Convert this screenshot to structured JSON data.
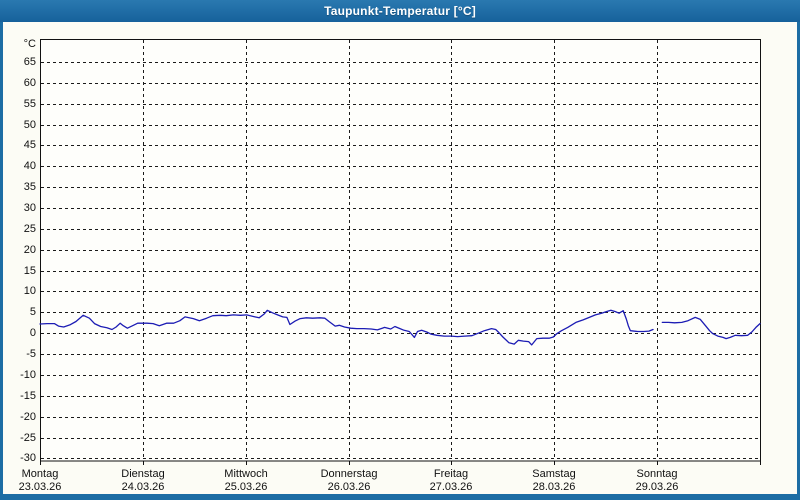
{
  "window": {
    "title": "Taupunkt-Temperatur [°C]"
  },
  "colors": {
    "frame": "#1d6da4",
    "titlebar_top": "#2a79b0",
    "titlebar_bottom": "#16619b",
    "content_bg": "#fcfcf5",
    "plot_bg": "#fefefb",
    "axis": "#111111",
    "grid": "#1a1a1a",
    "series": "#1c1cb4"
  },
  "chart_data": {
    "type": "line",
    "title": "Taupunkt-Temperatur [°C]",
    "ylabel": "",
    "xlabel": "",
    "y_unit_label": "°C",
    "y_ticks": [
      65,
      60,
      55,
      50,
      45,
      40,
      35,
      30,
      25,
      20,
      15,
      10,
      5,
      0,
      -5,
      -10,
      -15,
      -20,
      -25,
      -30
    ],
    "ylim": [
      -30.5,
      70.5
    ],
    "xlim_days": [
      0,
      7
    ],
    "grid": "dashed",
    "legend": "none",
    "days": [
      {
        "name": "Montag",
        "date": "23.03.26"
      },
      {
        "name": "Dienstag",
        "date": "24.03.26"
      },
      {
        "name": "Mittwoch",
        "date": "25.03.26"
      },
      {
        "name": "Donnerstag",
        "date": "26.03.26"
      },
      {
        "name": "Freitag",
        "date": "27.03.26"
      },
      {
        "name": "Samstag",
        "date": "28.03.26"
      },
      {
        "name": "Sonntag",
        "date": "29.03.26"
      }
    ],
    "series": [
      {
        "name": "Taupunkt-Temperatur",
        "color": "#1c1cb4",
        "unit": "°C",
        "segments": [
          [
            [
              0,
              2.2
            ],
            [
              0.07,
              2.3
            ],
            [
              0.14,
              2.3
            ],
            [
              0.18,
              1.7
            ],
            [
              0.23,
              1.5
            ],
            [
              0.29,
              2.0
            ],
            [
              0.35,
              2.8
            ],
            [
              0.42,
              4.3
            ],
            [
              0.48,
              3.6
            ],
            [
              0.53,
              2.3
            ],
            [
              0.59,
              1.6
            ],
            [
              0.65,
              1.3
            ],
            [
              0.7,
              0.9
            ],
            [
              0.74,
              1.5
            ],
            [
              0.78,
              2.4
            ],
            [
              0.81,
              1.8
            ],
            [
              0.85,
              1.2
            ],
            [
              0.9,
              1.8
            ],
            [
              0.95,
              2.4
            ],
            [
              1.04,
              2.4
            ],
            [
              1.1,
              2.3
            ],
            [
              1.16,
              1.8
            ],
            [
              1.23,
              2.4
            ],
            [
              1.3,
              2.4
            ],
            [
              1.36,
              3.0
            ],
            [
              1.41,
              3.9
            ],
            [
              1.49,
              3.5
            ],
            [
              1.55,
              3.0
            ],
            [
              1.62,
              3.6
            ],
            [
              1.68,
              4.2
            ],
            [
              1.75,
              4.3
            ],
            [
              1.81,
              4.2
            ],
            [
              1.88,
              4.4
            ],
            [
              1.95,
              4.3
            ],
            [
              2.01,
              4.4
            ],
            [
              2.09,
              3.9
            ],
            [
              2.13,
              3.7
            ],
            [
              2.18,
              4.6
            ],
            [
              2.21,
              5.5
            ],
            [
              2.26,
              4.9
            ],
            [
              2.31,
              4.4
            ],
            [
              2.36,
              3.9
            ],
            [
              2.4,
              3.8
            ],
            [
              2.43,
              2.1
            ],
            [
              2.48,
              2.9
            ],
            [
              2.53,
              3.5
            ],
            [
              2.59,
              3.7
            ],
            [
              2.65,
              3.6
            ],
            [
              2.72,
              3.7
            ],
            [
              2.77,
              3.6
            ],
            [
              2.81,
              2.8
            ],
            [
              2.87,
              1.7
            ],
            [
              2.91,
              1.9
            ],
            [
              2.96,
              1.5
            ],
            [
              3.02,
              1.2
            ],
            [
              3.08,
              1.1
            ],
            [
              3.15,
              1.1
            ],
            [
              3.22,
              1.0
            ],
            [
              3.28,
              0.8
            ],
            [
              3.35,
              1.4
            ],
            [
              3.41,
              1.0
            ],
            [
              3.45,
              1.6
            ],
            [
              3.5,
              1.1
            ],
            [
              3.54,
              0.7
            ],
            [
              3.59,
              0.4
            ],
            [
              3.64,
              -1.0
            ],
            [
              3.67,
              0.4
            ],
            [
              3.71,
              0.7
            ],
            [
              3.76,
              0.3
            ],
            [
              3.8,
              -0.2
            ],
            [
              3.86,
              -0.5
            ],
            [
              3.93,
              -0.7
            ],
            [
              4.0,
              -0.7
            ],
            [
              4.06,
              -0.8
            ],
            [
              4.13,
              -0.7
            ],
            [
              4.2,
              -0.6
            ],
            [
              4.27,
              0.1
            ],
            [
              4.32,
              0.6
            ],
            [
              4.39,
              1.1
            ],
            [
              4.43,
              0.9
            ],
            [
              4.46,
              0.2
            ],
            [
              4.5,
              -0.9
            ],
            [
              4.56,
              -2.3
            ],
            [
              4.61,
              -2.6
            ],
            [
              4.65,
              -1.7
            ],
            [
              4.7,
              -1.9
            ],
            [
              4.75,
              -2.0
            ],
            [
              4.78,
              -2.8
            ],
            [
              4.83,
              -1.3
            ],
            [
              4.89,
              -1.2
            ],
            [
              4.95,
              -1.2
            ],
            [
              4.99,
              -0.9
            ],
            [
              5.02,
              -0.2
            ],
            [
              5.07,
              0.6
            ],
            [
              5.13,
              1.4
            ],
            [
              5.21,
              2.6
            ],
            [
              5.28,
              3.2
            ],
            [
              5.34,
              3.8
            ],
            [
              5.4,
              4.4
            ],
            [
              5.46,
              4.8
            ],
            [
              5.51,
              5.2
            ],
            [
              5.55,
              5.5
            ],
            [
              5.59,
              5.2
            ],
            [
              5.63,
              4.8
            ],
            [
              5.67,
              5.4
            ],
            [
              5.7,
              3.4
            ],
            [
              5.72,
              1.8
            ],
            [
              5.74,
              0.6
            ],
            [
              5.81,
              0.4
            ],
            [
              5.87,
              0.4
            ],
            [
              5.92,
              0.5
            ],
            [
              5.96,
              0.9
            ]
          ],
          [
            [
              6.05,
              2.6
            ],
            [
              6.11,
              2.6
            ],
            [
              6.17,
              2.5
            ],
            [
              6.24,
              2.6
            ],
            [
              6.3,
              3.0
            ],
            [
              6.37,
              3.8
            ],
            [
              6.42,
              3.3
            ],
            [
              6.47,
              1.8
            ],
            [
              6.51,
              0.6
            ],
            [
              6.54,
              -0.1
            ],
            [
              6.59,
              -0.7
            ],
            [
              6.64,
              -1.0
            ],
            [
              6.67,
              -1.3
            ],
            [
              6.71,
              -1.0
            ],
            [
              6.76,
              -0.5
            ],
            [
              6.82,
              -0.6
            ],
            [
              6.88,
              -0.5
            ],
            [
              6.92,
              0.3
            ],
            [
              6.96,
              1.4
            ],
            [
              7.0,
              2.3
            ]
          ]
        ]
      }
    ]
  }
}
